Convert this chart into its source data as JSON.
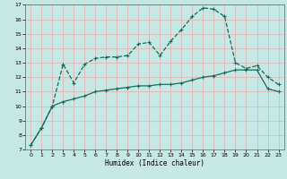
{
  "xlabel": "Humidex (Indice chaleur)",
  "background_color": "#c5e8e5",
  "grid_color": "#e0b8b8",
  "line_color": "#1a6b5a",
  "xlim": [
    -0.5,
    23.5
  ],
  "ylim": [
    7,
    17
  ],
  "xtick_labels": [
    "0",
    "1",
    "2",
    "3",
    "4",
    "5",
    "6",
    "7",
    "8",
    "9",
    "10",
    "11",
    "12",
    "13",
    "14",
    "15",
    "16",
    "17",
    "18",
    "19",
    "20",
    "21",
    "22",
    "23"
  ],
  "yticks": [
    7,
    8,
    9,
    10,
    11,
    12,
    13,
    14,
    15,
    16,
    17
  ],
  "line1_x": [
    0,
    1,
    2,
    3,
    4,
    5,
    6,
    7,
    8,
    9,
    10,
    11,
    12,
    13,
    14,
    15,
    16,
    17,
    18,
    19,
    20,
    21,
    22,
    23
  ],
  "line1_y": [
    7.3,
    8.5,
    10.0,
    12.9,
    11.6,
    12.9,
    13.3,
    13.4,
    13.4,
    13.5,
    14.3,
    14.4,
    13.5,
    14.5,
    15.3,
    16.2,
    16.8,
    16.7,
    16.2,
    13.0,
    12.6,
    12.8,
    12.0,
    11.5
  ],
  "line2_x": [
    0,
    1,
    2,
    3,
    4,
    5,
    6,
    7,
    8,
    9,
    10,
    11,
    12,
    13,
    14,
    15,
    16,
    17,
    18,
    19,
    20,
    21,
    22,
    23
  ],
  "line2_y": [
    7.3,
    8.5,
    10.0,
    10.3,
    10.5,
    10.7,
    11.0,
    11.1,
    11.2,
    11.3,
    11.4,
    11.4,
    11.5,
    11.5,
    11.6,
    11.8,
    12.0,
    12.1,
    12.3,
    12.5,
    12.5,
    12.5,
    11.2,
    11.0
  ]
}
